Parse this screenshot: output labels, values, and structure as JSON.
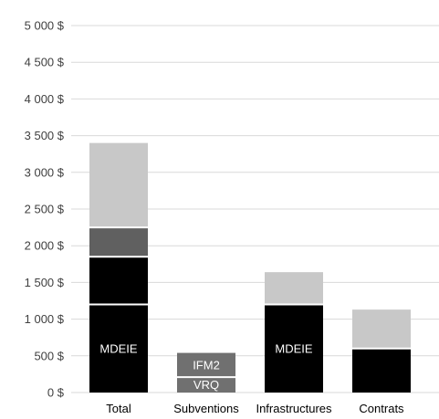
{
  "chart_data": {
    "type": "bar",
    "stacked": true,
    "title": "",
    "xlabel": "",
    "ylabel": "",
    "ylim": [
      0,
      5000
    ],
    "y_ticks": [
      "0 $",
      "500 $",
      "1 000 $",
      "1 500 $",
      "2 000 $",
      "2 500 $",
      "3 000 $",
      "3 500 $",
      "4 000 $",
      "4 500 $",
      "5 000 $"
    ],
    "y_tick_values": [
      0,
      500,
      1000,
      1500,
      2000,
      2500,
      3000,
      3500,
      4000,
      4500,
      5000
    ],
    "grid": true,
    "legend": "none",
    "categories": [
      "Total",
      "Subventions",
      "Infrastructures",
      "Contrats"
    ],
    "bars": [
      {
        "category": "Total",
        "segments": [
          {
            "label": "MDEIE",
            "value": 1200,
            "color": "#000000"
          },
          {
            "label": "",
            "value": 650,
            "color": "#000000"
          },
          {
            "label": "",
            "value": 400,
            "color": "#606060"
          },
          {
            "label": "",
            "value": 1150,
            "color": "#c8c8c8"
          }
        ]
      },
      {
        "category": "Subventions",
        "segments": [
          {
            "label": "VRQ",
            "value": 210,
            "color": "#707070"
          },
          {
            "label": "IFM2",
            "value": 330,
            "color": "#707070"
          }
        ]
      },
      {
        "category": "Infrastructures",
        "segments": [
          {
            "label": "MDEIE",
            "value": 1200,
            "color": "#000000"
          },
          {
            "label": "",
            "value": 440,
            "color": "#c8c8c8"
          }
        ]
      },
      {
        "category": "Contrats",
        "segments": [
          {
            "label": "",
            "value": 600,
            "color": "#000000"
          },
          {
            "label": "",
            "value": 530,
            "color": "#c8c8c8"
          }
        ]
      }
    ],
    "colors": {
      "grid": "#d9d9d9",
      "separator": "#ffffff"
    }
  }
}
